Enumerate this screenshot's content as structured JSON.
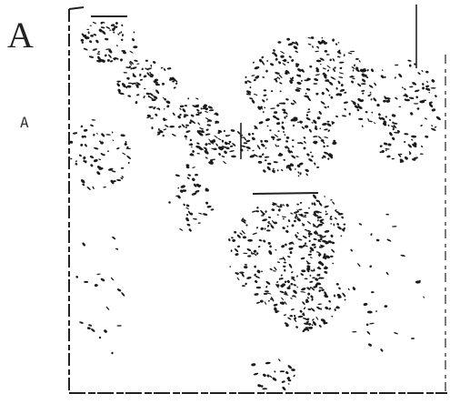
{
  "panel_label": "A",
  "side_label": "A"
}
